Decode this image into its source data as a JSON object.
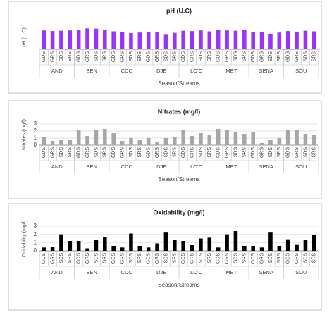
{
  "chart_data": [
    {
      "type": "bar",
      "title": "pH (U.C)",
      "y_label": "pH (U.C)",
      "x_label": "Season/Streams",
      "color": "#9933ff",
      "groups": [
        "AND",
        "BEN",
        "CDC",
        "DJE",
        "LO'O",
        "MET",
        "SENA",
        "SOU"
      ],
      "categories": [
        "GDS",
        "GRS",
        "SDS",
        "SRS",
        "GDS",
        "GRS",
        "SDS",
        "SRS",
        "GDS",
        "GRS",
        "SDS",
        "SRS",
        "GDS",
        "GRS",
        "SDS",
        "SRS",
        "GDS",
        "GRS",
        "SDS",
        "SRS",
        "GDS",
        "GRS",
        "SDS",
        "SRS",
        "GDS",
        "GRS",
        "SDS",
        "SRS",
        "GDS",
        "GRS",
        "SDS",
        "SRS"
      ],
      "values": [
        6.3,
        6.1,
        6.2,
        6.3,
        6.5,
        7.0,
        6.9,
        6.6,
        6.0,
        5.8,
        5.4,
        5.6,
        5.9,
        5.8,
        5.1,
        5.5,
        6.2,
        6.1,
        6.3,
        6.0,
        6.6,
        6.3,
        6.2,
        6.6,
        5.7,
        5.8,
        5.2,
        5.6,
        6.1,
        5.9,
        6.2,
        6.0
      ],
      "ylim": [
        0,
        8
      ],
      "grid": false
    },
    {
      "type": "bar",
      "title": "Nitrates (mg/l)",
      "y_label": "Nitrates (mg/l)",
      "x_label": "Season/Streams",
      "color": "#a6a6a6",
      "groups": [
        "AND",
        "BEN",
        "CDC",
        "DJE",
        "LO'O",
        "MET",
        "SENA",
        "SOU"
      ],
      "categories": [
        "GDS",
        "GRS",
        "SDS",
        "SRS",
        "GDS",
        "GRS",
        "SDS",
        "SRS",
        "GDS",
        "GRS",
        "SDS",
        "SRS",
        "GDS",
        "GRS",
        "SDS",
        "SRS",
        "GDS",
        "GRS",
        "SDS",
        "SRS",
        "GDS",
        "GRS",
        "SDS",
        "SRS",
        "GDS",
        "GRS",
        "SDS",
        "SRS",
        "GDS",
        "GRS",
        "SDS",
        "SRS"
      ],
      "values": [
        1.2,
        0.6,
        0.8,
        0.7,
        2.2,
        1.3,
        2.2,
        2.3,
        1.7,
        0.6,
        1.0,
        0.8,
        1.0,
        0.5,
        1.0,
        1.1,
        2.2,
        1.3,
        1.7,
        1.4,
        2.3,
        2.1,
        1.8,
        1.6,
        1.8,
        0.3,
        0.7,
        1.0,
        2.2,
        2.2,
        1.6,
        1.5
      ],
      "ylim": [
        0,
        3
      ],
      "yticks": [
        0,
        1,
        2,
        3
      ],
      "grid": true
    },
    {
      "type": "bar",
      "title": "Oxidability (mg/l)",
      "y_label": "Oxidability (mg/l)",
      "x_label": "Season/Streams",
      "color": "#000000",
      "groups": [
        "AND",
        "BEN",
        "CDC",
        "DJE",
        "LO'O",
        "MET",
        "SENA",
        "SOU"
      ],
      "categories": [
        "GDS",
        "GRS",
        "SDS",
        "SRS",
        "GDS",
        "GRS",
        "SDS",
        "SRS",
        "GDS",
        "GRS",
        "SDS",
        "SRS",
        "GDS",
        "GRS",
        "SDS",
        "SRS",
        "GDS",
        "GRS",
        "SDS",
        "SRS",
        "GDS",
        "GRS",
        "SDS",
        "SRS",
        "GDS",
        "GRS",
        "SDS",
        "SRS",
        "GDS",
        "GRS",
        "SDS",
        "SRS"
      ],
      "values": [
        0.4,
        0.5,
        2.0,
        1.2,
        1.2,
        0.3,
        1.3,
        1.7,
        0.6,
        0.4,
        2.1,
        0.6,
        0.4,
        0.9,
        2.3,
        1.3,
        1.2,
        0.7,
        1.5,
        1.6,
        0.4,
        2.0,
        2.4,
        0.6,
        0.6,
        0.4,
        2.3,
        0.6,
        1.4,
        0.8,
        1.3,
        1.9
      ],
      "ylim": [
        0,
        3
      ],
      "yticks": [
        0,
        1,
        2,
        3
      ],
      "grid": true
    }
  ]
}
